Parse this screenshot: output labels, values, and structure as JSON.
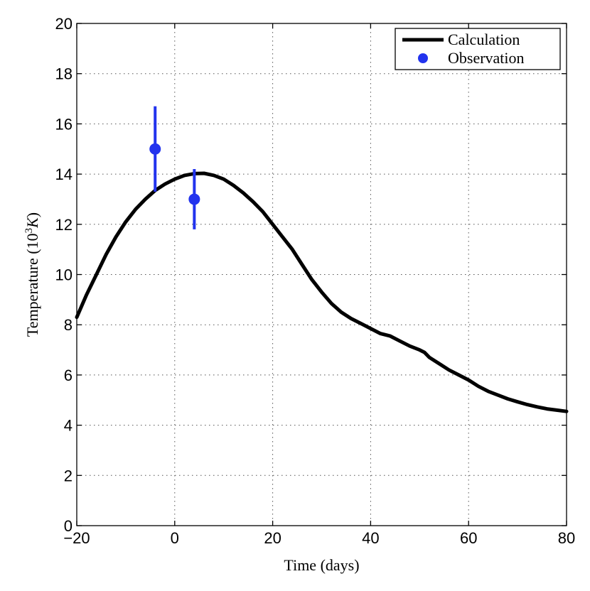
{
  "chart_data": {
    "type": "line",
    "title": "",
    "xlabel": "Time (days)",
    "ylabel_prefix": "Temperature (10",
    "ylabel_sup": "3",
    "ylabel_unit": "K",
    "ylabel_suffix": ")",
    "xlim": [
      -20,
      80
    ],
    "ylim": [
      0,
      20
    ],
    "xticks": [
      -20,
      0,
      20,
      40,
      60,
      80
    ],
    "yticks": [
      0,
      2,
      4,
      6,
      8,
      10,
      12,
      14,
      16,
      18,
      20
    ],
    "xtick_labels": [
      "−20",
      "0",
      "20",
      "40",
      "60",
      "80"
    ],
    "ytick_labels": [
      "0",
      "2",
      "4",
      "6",
      "8",
      "10",
      "12",
      "14",
      "16",
      "18",
      "20"
    ],
    "grid": true,
    "legend_position": "top-right",
    "series": [
      {
        "name": "Calculation",
        "kind": "line",
        "color": "#000000",
        "x": [
          -20,
          -18,
          -16,
          -14,
          -12,
          -10,
          -8,
          -6,
          -4,
          -2,
          0,
          2,
          4,
          6,
          8,
          10,
          12,
          14,
          16,
          18,
          20,
          22,
          24,
          26,
          28,
          30,
          32,
          34,
          36,
          38,
          40,
          42,
          44,
          46,
          48,
          50,
          51,
          52,
          54,
          56,
          58,
          60,
          62,
          64,
          66,
          68,
          70,
          72,
          74,
          76,
          78,
          80
        ],
        "y": [
          8.3,
          9.2,
          10.0,
          10.8,
          11.5,
          12.1,
          12.6,
          13.0,
          13.35,
          13.6,
          13.8,
          13.95,
          14.02,
          14.03,
          13.95,
          13.8,
          13.55,
          13.25,
          12.9,
          12.5,
          12.0,
          11.5,
          11.0,
          10.4,
          9.8,
          9.3,
          8.85,
          8.5,
          8.25,
          8.05,
          7.85,
          7.65,
          7.55,
          7.35,
          7.15,
          7.0,
          6.9,
          6.7,
          6.45,
          6.2,
          6.0,
          5.8,
          5.55,
          5.35,
          5.2,
          5.05,
          4.93,
          4.82,
          4.73,
          4.65,
          4.6,
          4.55
        ]
      },
      {
        "name": "Observation",
        "kind": "errorbar",
        "color": "#2233ee",
        "points": [
          {
            "x": -4,
            "y": 15,
            "ylow": 13.3,
            "yhigh": 16.7
          },
          {
            "x": 4,
            "y": 13,
            "ylow": 11.8,
            "yhigh": 14.2
          }
        ]
      }
    ]
  }
}
